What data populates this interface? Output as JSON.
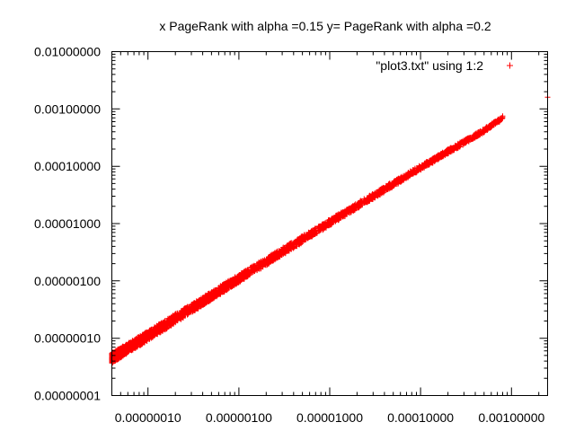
{
  "chart_data": {
    "type": "scatter",
    "title": "x PageRank with alpha =0.15 y= PageRank with alpha =0.2",
    "xlabel": "",
    "ylabel": "",
    "x_scale": "log",
    "y_scale": "log",
    "xlim": [
      4e-08,
      0.0025
    ],
    "ylim": [
      1e-08,
      0.01
    ],
    "x_ticks": [
      {
        "value": 1e-07,
        "label": "0.00000010"
      },
      {
        "value": 1e-06,
        "label": "0.00000100"
      },
      {
        "value": 1e-05,
        "label": "0.00001000"
      },
      {
        "value": 0.0001,
        "label": "0.00010000"
      },
      {
        "value": 0.001,
        "label": "0.00100000"
      }
    ],
    "y_ticks": [
      {
        "value": 1e-08,
        "label": "0.00000001"
      },
      {
        "value": 1e-07,
        "label": "0.00000010"
      },
      {
        "value": 1e-06,
        "label": "0.00000100"
      },
      {
        "value": 1e-05,
        "label": "0.00001000"
      },
      {
        "value": 0.0001,
        "label": "0.00010000"
      },
      {
        "value": 0.001,
        "label": "0.00100000"
      },
      {
        "value": 0.01,
        "label": "0.01000000"
      }
    ],
    "grid": false,
    "legend_position": "top-right",
    "series": [
      {
        "name": "\"plot3.txt\" using 1:2",
        "color": "#ff0000",
        "marker": "plus",
        "trend_points": [
          [
            4e-08,
            4.5e-08
          ],
          [
            1e-07,
            1.1e-07
          ],
          [
            1e-06,
            1.1e-06
          ],
          [
            1e-05,
            1.05e-05
          ],
          [
            0.0001,
            9.5e-05
          ],
          [
            0.0005,
            0.00042
          ],
          [
            0.0008,
            0.0007
          ]
        ],
        "outliers": [
          [
            0.0025,
            0.0016
          ]
        ]
      }
    ]
  }
}
